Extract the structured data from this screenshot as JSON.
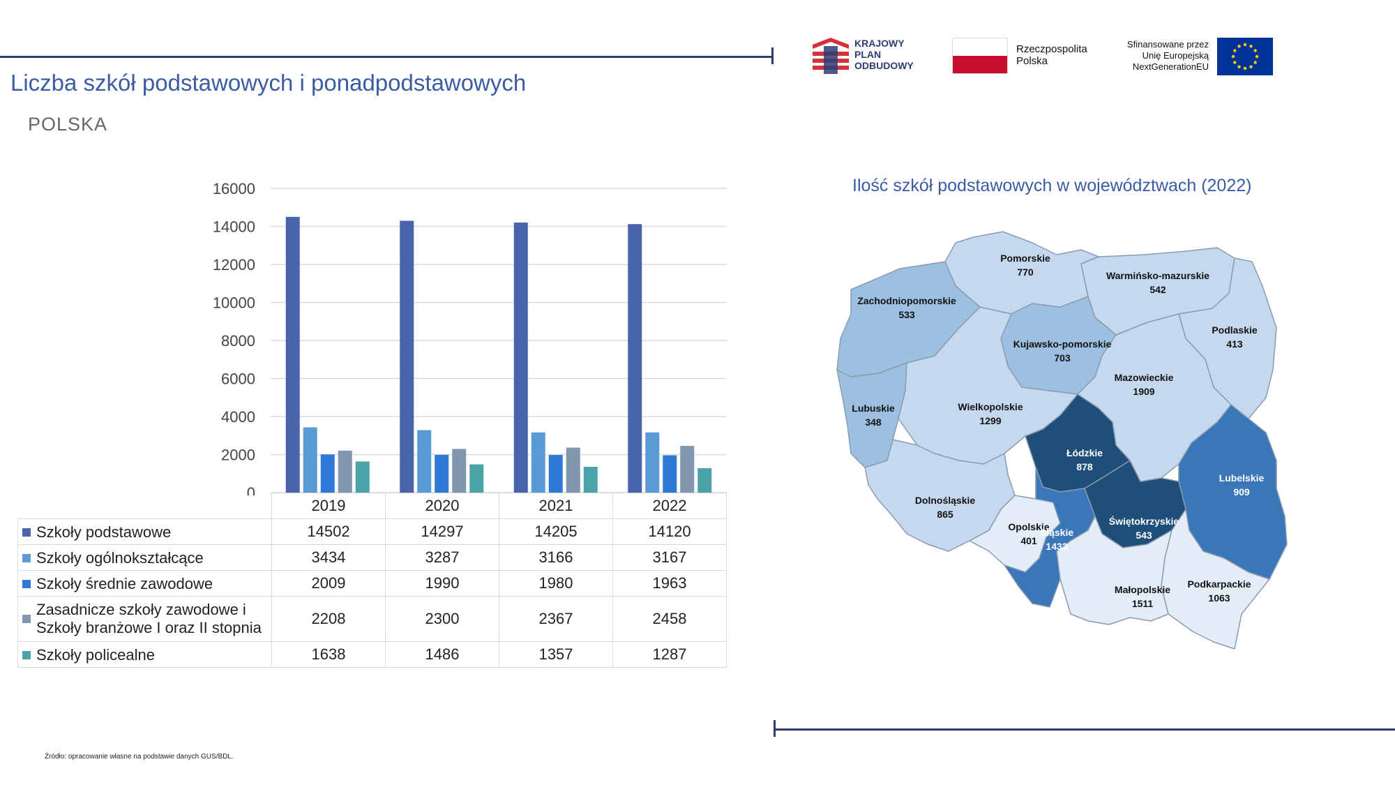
{
  "header": {
    "title": "Liczba szkół podstawowych i ponadpodstawowych",
    "subtitle": "POLSKA"
  },
  "logos": {
    "kpo_text": "KRAJOWY\nPLAN\nODBUDOWY",
    "rp_text": "Rzeczpospolita\nPolska",
    "eu_text": "Sfinansowane przez\nUnię Europejską\nNextGenerationEU"
  },
  "footer": {
    "source": "Źródło: opracowanie własne na podstawie danych GUS/BDL."
  },
  "chart_data": [
    {
      "type": "bar",
      "categories": [
        "2019",
        "2020",
        "2021",
        "2022"
      ],
      "ylim": [
        0,
        16000
      ],
      "yticks": [
        0,
        2000,
        4000,
        6000,
        8000,
        10000,
        12000,
        14000,
        16000
      ],
      "grid": true,
      "legend": "data-table",
      "series": [
        {
          "name": "Szkoły podstawowe",
          "color": "#4a63ad",
          "values": [
            14502,
            14297,
            14205,
            14120
          ]
        },
        {
          "name": "Szkoły ogólnokształcące",
          "color": "#5b9bd5",
          "values": [
            3434,
            3287,
            3166,
            3167
          ]
        },
        {
          "name": "Szkoły średnie zawodowe",
          "color": "#2e7ad6",
          "values": [
            2009,
            1990,
            1980,
            1963
          ]
        },
        {
          "name": "Zasadnicze szkoły zawodowe i\nSzkoły branżowe I oraz II stopnia",
          "color": "#8396b0",
          "values": [
            2208,
            2300,
            2367,
            2458
          ]
        },
        {
          "name": "Szkoły policealne",
          "color": "#4ba3a8",
          "values": [
            1638,
            1486,
            1357,
            1287
          ]
        }
      ]
    },
    {
      "type": "choropleth",
      "title": "Ilość szkół podstawowych w województwach (2022)",
      "regions": [
        {
          "name": "Pomorskie",
          "value": 770,
          "color": "#c5d9ee",
          "text_color": "#111111"
        },
        {
          "name": "Warmińsko-mazurskie",
          "value": 542,
          "color": "#c5d9ee",
          "text_color": "#111111"
        },
        {
          "name": "Zachodniopomorskie",
          "value": 533,
          "color": "#9dc0e0",
          "text_color": "#111111"
        },
        {
          "name": "Podlaskie",
          "value": 413,
          "color": "#c5d9ee",
          "text_color": "#111111"
        },
        {
          "name": "Kujawsko-pomorskie",
          "value": 703,
          "color": "#9dc0e0",
          "text_color": "#111111"
        },
        {
          "name": "Mazowieckie",
          "value": 1909,
          "color": "#c5d9ee",
          "text_color": "#111111"
        },
        {
          "name": "Lubuskie",
          "value": 348,
          "color": "#9dc0e0",
          "text_color": "#111111"
        },
        {
          "name": "Wielkopolskie",
          "value": 1299,
          "color": "#c5d9ee",
          "text_color": "#111111"
        },
        {
          "name": "Łódzkie",
          "value": 878,
          "color": "#1f4e79",
          "text_color": "#ffffff"
        },
        {
          "name": "Lubelskie",
          "value": 909,
          "color": "#3a77b8",
          "text_color": "#ffffff"
        },
        {
          "name": "Dolnośląskie",
          "value": 865,
          "color": "#c5d9ee",
          "text_color": "#111111"
        },
        {
          "name": "Opolskie",
          "value": 401,
          "color": "#e2edf8",
          "text_color": "#111111"
        },
        {
          "name": "Śląskie",
          "value": 1433,
          "color": "#3a77b8",
          "text_color": "#ffffff"
        },
        {
          "name": "Świętokrzyskie",
          "value": 543,
          "color": "#1f4e79",
          "text_color": "#ffffff"
        },
        {
          "name": "Małopolskie",
          "value": 1511,
          "color": "#e2edf8",
          "text_color": "#111111"
        },
        {
          "name": "Podkarpackie",
          "value": 1063,
          "color": "#e2edf8",
          "text_color": "#111111"
        }
      ]
    }
  ]
}
